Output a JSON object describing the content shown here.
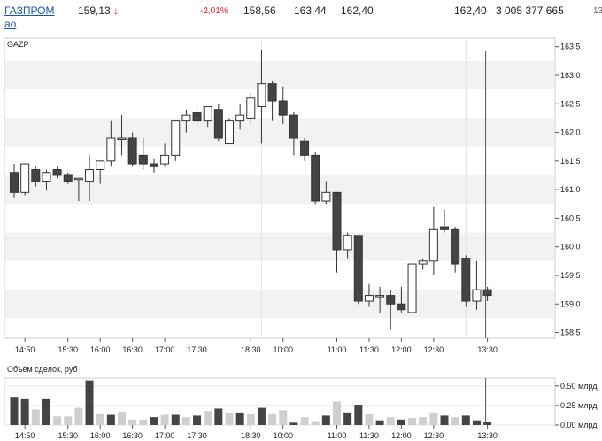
{
  "ticker": {
    "name_line1": "ГАЗПРОМ",
    "name_line2": "ао",
    "last": "159,13",
    "arrow": "↓",
    "change": "-2,01%",
    "open": "158,56",
    "high": "163,44",
    "low": "162,40",
    "close": "162,40",
    "volume": "3 005 377 665",
    "extra": "13"
  },
  "colors": {
    "up": "#ffffff",
    "down": "#444444",
    "grid_band": "#f2f2f2",
    "volume_light": "#cfcfcf",
    "volume_dark": "#444444"
  },
  "chart_data": [
    {
      "type": "candlestick",
      "title": "GAZP",
      "y_ticks": [
        "163.5",
        "163.0",
        "162.5",
        "162.0",
        "161.5",
        "161.0",
        "160.5",
        "160.0",
        "159.5",
        "159.0",
        "158.5"
      ],
      "ylim": [
        158.4,
        163.65
      ],
      "x_tick_labels": [
        {
          "label": "14:50",
          "at": 1
        },
        {
          "label": "15:30",
          "at": 5
        },
        {
          "label": "16:00",
          "at": 8
        },
        {
          "label": "16:30",
          "at": 11
        },
        {
          "label": "17:00",
          "at": 14
        },
        {
          "label": "17:30",
          "at": 17
        },
        {
          "label": "18:30",
          "at": 22
        },
        {
          "label": "10:00",
          "at": 25
        },
        {
          "label": "11:00",
          "at": 30
        },
        {
          "label": "11:30",
          "at": 33
        },
        {
          "label": "12:00",
          "at": 36
        },
        {
          "label": "12:30",
          "at": 39
        },
        {
          "label": "13:30",
          "at": 44
        }
      ],
      "candles": [
        {
          "o": 161.3,
          "h": 161.45,
          "l": 160.85,
          "c": 160.95
        },
        {
          "o": 160.95,
          "h": 161.45,
          "l": 160.9,
          "c": 161.45
        },
        {
          "o": 161.35,
          "h": 161.4,
          "l": 161.05,
          "c": 161.15
        },
        {
          "o": 161.15,
          "h": 161.35,
          "l": 161.0,
          "c": 161.3
        },
        {
          "o": 161.35,
          "h": 161.4,
          "l": 161.2,
          "c": 161.25
        },
        {
          "o": 161.25,
          "h": 161.3,
          "l": 161.1,
          "c": 161.15
        },
        {
          "o": 161.2,
          "h": 161.2,
          "l": 160.8,
          "c": 161.2
        },
        {
          "o": 161.15,
          "h": 161.6,
          "l": 160.8,
          "c": 161.35
        },
        {
          "o": 161.35,
          "h": 161.5,
          "l": 161.1,
          "c": 161.5
        },
        {
          "o": 161.5,
          "h": 162.2,
          "l": 161.4,
          "c": 161.9
        },
        {
          "o": 161.9,
          "h": 162.3,
          "l": 161.6,
          "c": 161.9
        },
        {
          "o": 161.9,
          "h": 162.0,
          "l": 161.4,
          "c": 161.45
        },
        {
          "o": 161.6,
          "h": 161.9,
          "l": 161.35,
          "c": 161.45
        },
        {
          "o": 161.45,
          "h": 161.55,
          "l": 161.3,
          "c": 161.4
        },
        {
          "o": 161.45,
          "h": 161.8,
          "l": 161.4,
          "c": 161.6
        },
        {
          "o": 161.6,
          "h": 162.2,
          "l": 161.5,
          "c": 162.2
        },
        {
          "o": 162.2,
          "h": 162.4,
          "l": 162.0,
          "c": 162.3
        },
        {
          "o": 162.35,
          "h": 162.5,
          "l": 162.1,
          "c": 162.2
        },
        {
          "o": 162.2,
          "h": 162.45,
          "l": 162.1,
          "c": 162.45
        },
        {
          "o": 162.4,
          "h": 162.5,
          "l": 161.85,
          "c": 161.9
        },
        {
          "o": 161.8,
          "h": 162.25,
          "l": 161.8,
          "c": 162.2
        },
        {
          "o": 162.2,
          "h": 162.5,
          "l": 162.05,
          "c": 162.3
        },
        {
          "o": 162.25,
          "h": 162.7,
          "l": 162.15,
          "c": 162.6
        },
        {
          "o": 162.45,
          "h": 163.45,
          "l": 161.8,
          "c": 162.85
        },
        {
          "o": 162.85,
          "h": 162.9,
          "l": 162.2,
          "c": 162.55
        },
        {
          "o": 162.55,
          "h": 162.8,
          "l": 162.15,
          "c": 162.3
        },
        {
          "o": 162.3,
          "h": 162.35,
          "l": 161.6,
          "c": 161.9
        },
        {
          "o": 161.85,
          "h": 161.9,
          "l": 161.5,
          "c": 161.6
        },
        {
          "o": 161.6,
          "h": 161.65,
          "l": 160.75,
          "c": 160.8
        },
        {
          "o": 160.8,
          "h": 161.15,
          "l": 160.75,
          "c": 160.95
        },
        {
          "o": 160.95,
          "h": 160.95,
          "l": 159.55,
          "c": 159.95
        },
        {
          "o": 159.95,
          "h": 160.25,
          "l": 159.8,
          "c": 160.2
        },
        {
          "o": 160.2,
          "h": 160.2,
          "l": 159.0,
          "c": 159.05
        },
        {
          "o": 159.05,
          "h": 159.35,
          "l": 158.95,
          "c": 159.15
        },
        {
          "o": 159.15,
          "h": 159.3,
          "l": 158.85,
          "c": 159.15
        },
        {
          "o": 159.15,
          "h": 159.25,
          "l": 158.55,
          "c": 159.0
        },
        {
          "o": 159.0,
          "h": 159.3,
          "l": 158.85,
          "c": 158.9
        },
        {
          "o": 158.85,
          "h": 159.7,
          "l": 158.85,
          "c": 159.7
        },
        {
          "o": 159.7,
          "h": 159.8,
          "l": 159.6,
          "c": 159.75
        },
        {
          "o": 159.75,
          "h": 160.7,
          "l": 159.5,
          "c": 160.3
        },
        {
          "o": 160.35,
          "h": 160.65,
          "l": 160.25,
          "c": 160.3
        },
        {
          "o": 160.3,
          "h": 160.35,
          "l": 159.55,
          "c": 159.7
        },
        {
          "o": 159.8,
          "h": 159.85,
          "l": 158.95,
          "c": 159.05
        },
        {
          "o": 159.05,
          "h": 159.75,
          "l": 158.9,
          "c": 159.25
        },
        {
          "o": 159.25,
          "h": 159.3,
          "l": 159.05,
          "c": 159.15
        }
      ]
    },
    {
      "type": "bar",
      "title": "Объём сделок, руб",
      "y_ticks": [
        "0.50 млрд",
        "0.25 млрд",
        "0.00 млрд"
      ],
      "ylim": [
        0,
        0.6
      ],
      "values": [
        0.36,
        0.33,
        0.2,
        0.33,
        0.11,
        0.11,
        0.22,
        0.57,
        0.15,
        0.13,
        0.17,
        0.07,
        0.07,
        0.1,
        0.13,
        0.13,
        0.1,
        0.12,
        0.18,
        0.21,
        0.16,
        0.16,
        0.14,
        0.22,
        0.15,
        0.19,
        0.03,
        0.1,
        0.05,
        0.12,
        0.3,
        0.16,
        0.26,
        0.14,
        0.06,
        0.1,
        0.07,
        0.09,
        0.1,
        0.16,
        0.12,
        0.1,
        0.12,
        0.06,
        0.04
      ],
      "dark": [
        1,
        1,
        0,
        1,
        0,
        0,
        0,
        1,
        0,
        1,
        0,
        0,
        0,
        1,
        0,
        1,
        0,
        1,
        0,
        1,
        0,
        1,
        0,
        1,
        0,
        0,
        1,
        0,
        0,
        1,
        0,
        1,
        1,
        0,
        1,
        0,
        1,
        0,
        0,
        0,
        1,
        0,
        1,
        1,
        1
      ]
    }
  ]
}
